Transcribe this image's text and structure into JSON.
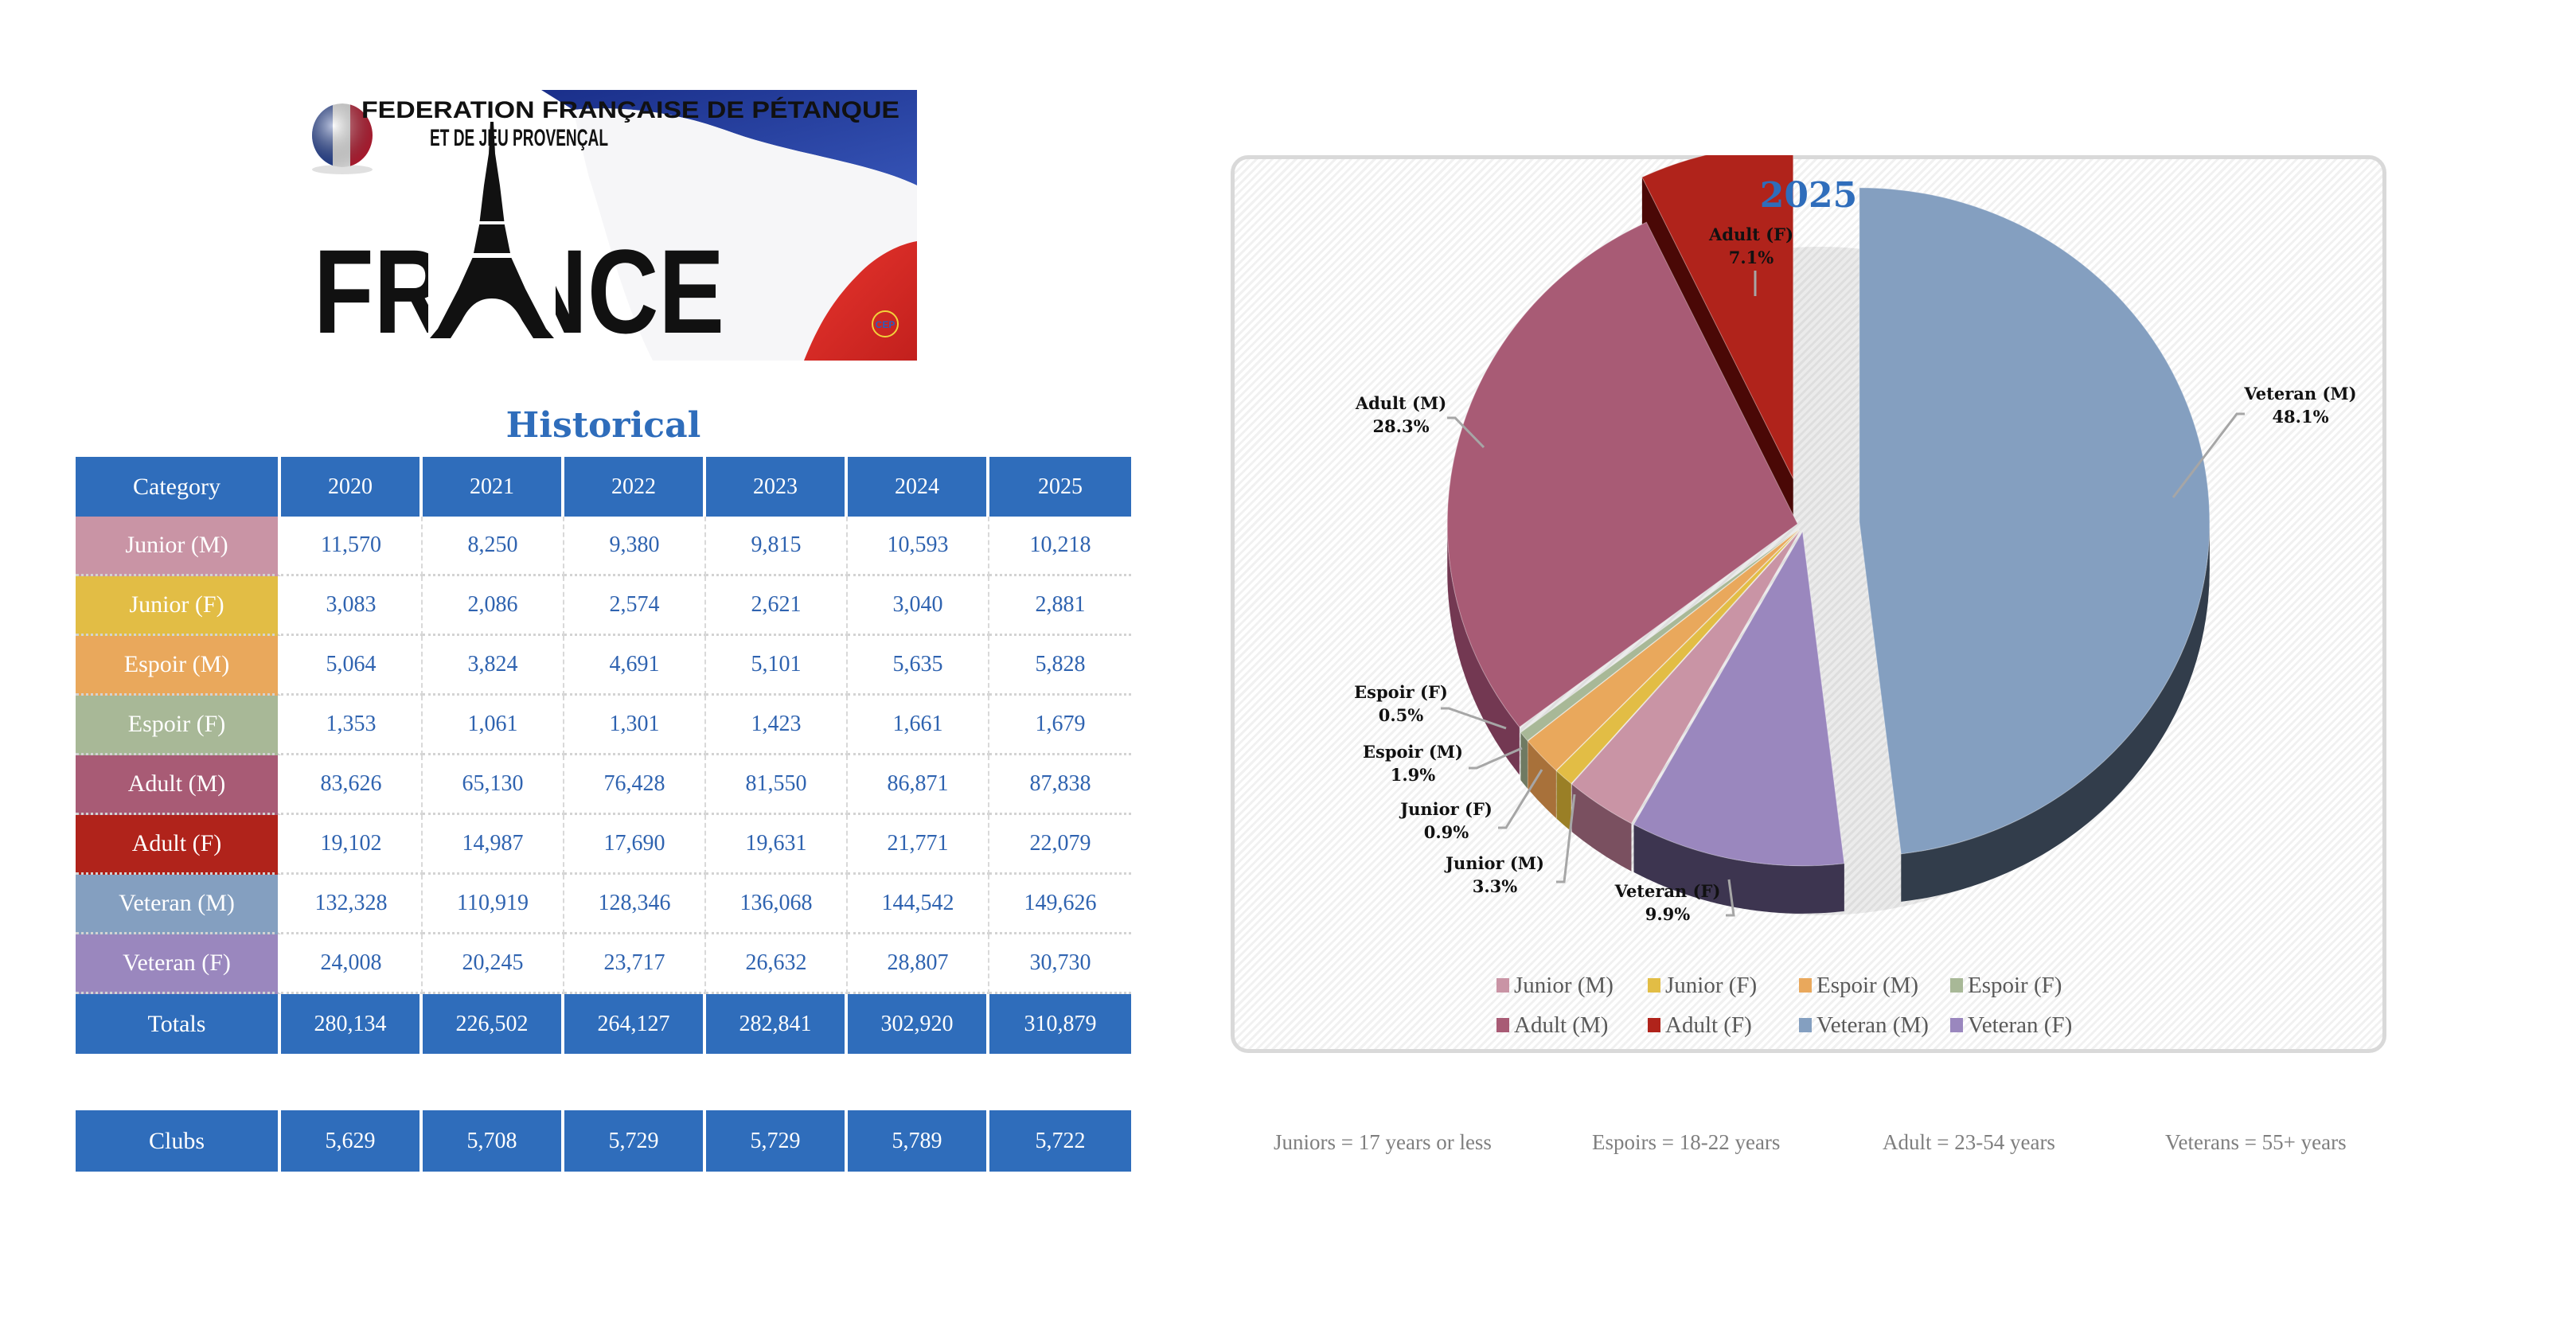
{
  "logo": {
    "line1": "FEDERATION FRANÇAISE DE PÉTANQUE",
    "line2": "ET DE JEU PROVENÇAL",
    "word": "FRANCE",
    "emblem": "CEP"
  },
  "historical": {
    "title": "Historical",
    "headers": [
      "Category",
      "2020",
      "2021",
      "2022",
      "2023",
      "2024",
      "2025"
    ],
    "rows": [
      {
        "category": "Junior (M)",
        "color": "#c994a5",
        "values": [
          "11,570",
          "8,250",
          "9,380",
          "9,815",
          "10,593",
          "10,218"
        ]
      },
      {
        "category": "Junior (F)",
        "color": "#e2bd45",
        "values": [
          "3,083",
          "2,086",
          "2,574",
          "2,621",
          "3,040",
          "2,881"
        ]
      },
      {
        "category": "Espoir (M)",
        "color": "#e9a85c",
        "values": [
          "5,064",
          "3,824",
          "4,691",
          "5,101",
          "5,635",
          "5,828"
        ]
      },
      {
        "category": "Espoir (F)",
        "color": "#a8b897",
        "values": [
          "1,353",
          "1,061",
          "1,301",
          "1,423",
          "1,661",
          "1,679"
        ]
      },
      {
        "category": "Adult (M)",
        "color": "#a85b75",
        "values": [
          "83,626",
          "65,130",
          "76,428",
          "81,550",
          "86,871",
          "87,838"
        ]
      },
      {
        "category": "Adult (F)",
        "color": "#b0231b",
        "values": [
          "19,102",
          "14,987",
          "17,690",
          "19,631",
          "21,771",
          "22,079"
        ]
      },
      {
        "category": "Veteran (M)",
        "color": "#849fc0",
        "values": [
          "132,328",
          "110,919",
          "128,346",
          "136,068",
          "144,542",
          "149,626"
        ]
      },
      {
        "category": "Veteran (F)",
        "color": "#9a87be",
        "values": [
          "24,008",
          "20,245",
          "23,717",
          "26,632",
          "28,807",
          "30,730"
        ]
      }
    ],
    "totals": {
      "label": "Totals",
      "values": [
        "280,134",
        "226,502",
        "264,127",
        "282,841",
        "302,920",
        "310,879"
      ]
    },
    "clubs": {
      "label": "Clubs",
      "values": [
        "5,629",
        "5,708",
        "5,729",
        "5,729",
        "5,789",
        "5,722"
      ]
    },
    "header_color": "#2f6dbb"
  },
  "chart_data": {
    "type": "pie",
    "title": "2025",
    "start": "top, clockwise",
    "categories": [
      "Veteran (M)",
      "Veteran (F)",
      "Junior (M)",
      "Junior (F)",
      "Espoir (M)",
      "Espoir (F)",
      "Adult (M)",
      "Adult (F)"
    ],
    "values": [
      48.1,
      9.9,
      3.3,
      0.9,
      1.9,
      0.5,
      28.3,
      7.1
    ],
    "labels": [
      "48.1%",
      "9.9%",
      "3.3%",
      "0.9%",
      "1.9%",
      "0.5%",
      "28.3%",
      "7.1%"
    ],
    "colors": [
      "#849fc0",
      "#9a87be",
      "#c994a5",
      "#e2bd45",
      "#e9a85c",
      "#a8b897",
      "#a85b75",
      "#b0231b"
    ],
    "side_colors": [
      "#323d4b",
      "#3d3550",
      "#7a5060",
      "#9a7f26",
      "#a8713a",
      "#6f7a62",
      "#733852",
      "#4a0806"
    ],
    "exploded": [
      "Veteran (M)",
      "Adult (F)"
    ],
    "legend": {
      "position": "bottom",
      "items": [
        {
          "label": "Junior (M)",
          "color": "#c994a5"
        },
        {
          "label": "Junior (F)",
          "color": "#e2bd45"
        },
        {
          "label": "Espoir (M)",
          "color": "#e9a85c"
        },
        {
          "label": "Espoir (F)",
          "color": "#a8b897"
        },
        {
          "label": "Adult (M)",
          "color": "#a85b75"
        },
        {
          "label": "Adult (F)",
          "color": "#b0231b"
        },
        {
          "label": "Veteran (M)",
          "color": "#849fc0"
        },
        {
          "label": "Veteran (F)",
          "color": "#9a87be"
        }
      ]
    }
  },
  "notes": [
    "Juniors = 17 years or less",
    "Espoirs = 18-22 years",
    "Adult = 23-54 years",
    "Veterans = 55+ years"
  ]
}
